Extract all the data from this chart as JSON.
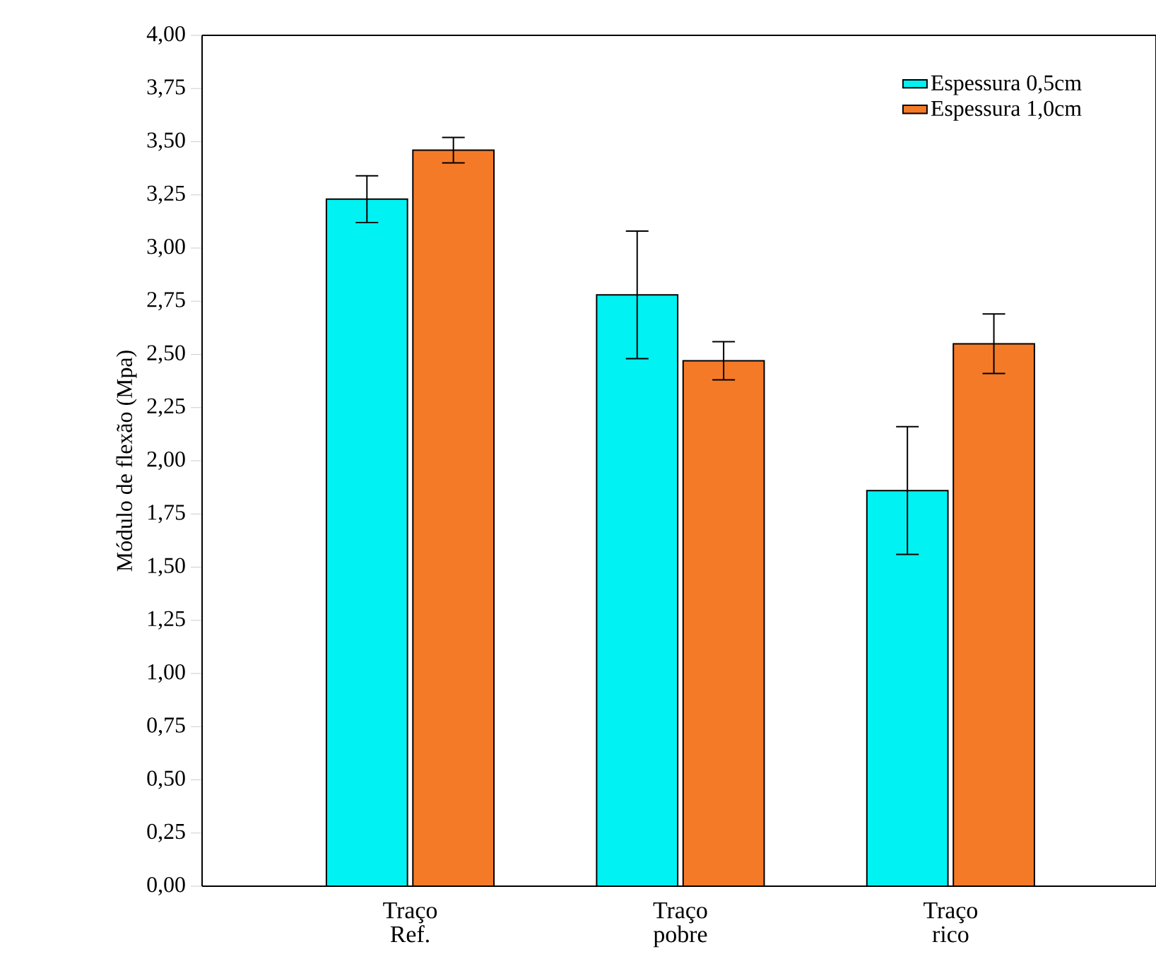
{
  "chart_data": {
    "type": "bar",
    "ylabel": "Módulo de flexão (Mpa)",
    "categories": [
      "Traço\nRef.",
      "Traço\npobre",
      "Traço\nrico"
    ],
    "series": [
      {
        "name": "Espessura 0,5cm",
        "color": "#00f2f2",
        "values": [
          3.23,
          2.78,
          1.86
        ],
        "errors": [
          0.11,
          0.3,
          0.3
        ]
      },
      {
        "name": "Espessura 1,0cm",
        "color": "#f57a28",
        "values": [
          3.46,
          2.47,
          2.55
        ],
        "errors": [
          0.06,
          0.09,
          0.14
        ]
      }
    ],
    "ylim": [
      0,
      4
    ],
    "yticks": [
      {
        "value": 0,
        "label": "0,00"
      },
      {
        "value": 0.25,
        "label": "0,25"
      },
      {
        "value": 0.5,
        "label": "0,50"
      },
      {
        "value": 0.75,
        "label": "0,75"
      },
      {
        "value": 1,
        "label": "1,00"
      },
      {
        "value": 1.25,
        "label": "1,25"
      },
      {
        "value": 1.5,
        "label": "1,50"
      },
      {
        "value": 1.75,
        "label": "1,75"
      },
      {
        "value": 2,
        "label": "2,00"
      },
      {
        "value": 2.25,
        "label": "2,25"
      },
      {
        "value": 2.5,
        "label": "2,50"
      },
      {
        "value": 2.75,
        "label": "2,75"
      },
      {
        "value": 3,
        "label": "3,00"
      },
      {
        "value": 3.25,
        "label": "3,25"
      },
      {
        "value": 3.5,
        "label": "3,50"
      },
      {
        "value": 3.75,
        "label": "3,75"
      },
      {
        "value": 4,
        "label": "4,00"
      }
    ],
    "grid": false,
    "legend": "top right"
  }
}
